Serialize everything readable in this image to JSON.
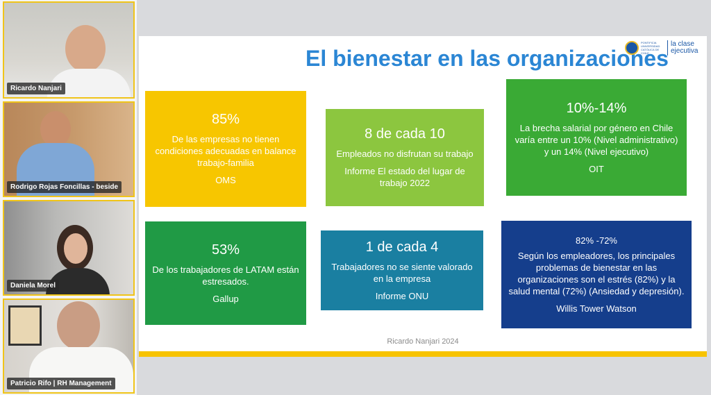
{
  "participants": [
    {
      "name": "Ricardo Nanjari"
    },
    {
      "name": "Rodrigo Rojas Foncillas - beside"
    },
    {
      "name": "Daniela Morel"
    },
    {
      "name": "Patricio Rifo | RH Management"
    }
  ],
  "slide": {
    "title": "El bienestar en las organizaciones",
    "logo": {
      "small_text": "PONTIFICIA UNIVERSIDAD CATÓLICA DE CHILE",
      "brand_line1": "la clase",
      "brand_line2": "ejecutiva"
    },
    "cards": [
      {
        "big": "85%",
        "text": "De las empresas no tienen condiciones adecuadas en balance trabajo-familia",
        "source": "OMS"
      },
      {
        "big": "8 de cada 10",
        "text": "Empleados no disfrutan su trabajo",
        "source": "Informe El estado del lugar de trabajo 2022"
      },
      {
        "big": "10%-14%",
        "text": "La brecha salarial por género en Chile varía entre un 10% (Nivel administrativo) y un 14% (Nivel ejecutivo)",
        "source": "OIT"
      },
      {
        "big": "53%",
        "text": "De los trabajadores de LATAM están estresados.",
        "source": "Gallup"
      },
      {
        "big": "1 de cada 4",
        "text": "Trabajadores no se siente valorado en la empresa",
        "source": "Informe ONU"
      },
      {
        "big": "82% -72%",
        "text": "Según los empleadores, los principales problemas de bienestar en las organizaciones son el estrés (82%) y la salud mental (72%) (Ansiedad y depresión).",
        "source": "Willis Tower Watson"
      }
    ],
    "footer": "Ricardo Nanjari 2024"
  },
  "colors": {
    "title": "#2b86d4",
    "accent_border": "#f0c419",
    "card_yellow": "#f7c600",
    "card_lime": "#8cc63f",
    "card_green": "#3aaa35",
    "card_dark_green": "#209a45",
    "card_teal": "#1a7fa1",
    "card_navy": "#153e8c"
  }
}
